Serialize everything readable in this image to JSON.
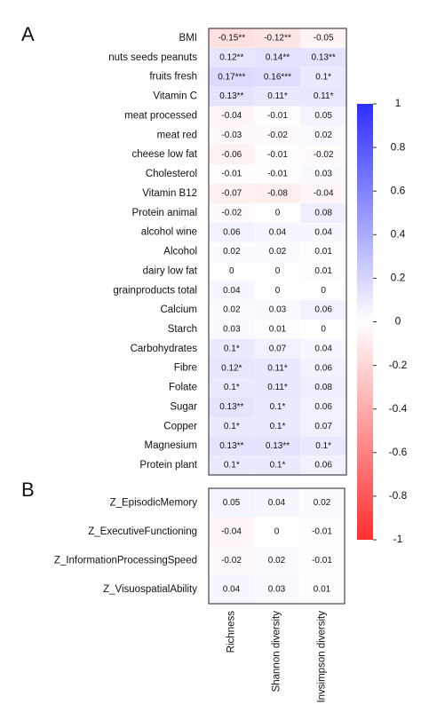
{
  "chart_data": [
    {
      "type": "heatmap",
      "panel_label": "A",
      "rows": [
        "BMI",
        "nuts seeds peanuts",
        "fruits fresh",
        "Vitamin C",
        "meat processed",
        "meat red",
        "cheese low fat",
        "Cholesterol",
        "Vitamin B12",
        "Protein animal",
        "alcohol wine",
        "Alcohol",
        "dairy low fat",
        "grainproducts total",
        "Calcium",
        "Starch",
        "Carbohydrates",
        "Fibre",
        "Folate",
        "Sugar",
        "Copper",
        "Magnesium",
        "Protein plant"
      ],
      "values": [
        [
          -0.15,
          -0.12,
          -0.05
        ],
        [
          0.12,
          0.14,
          0.13
        ],
        [
          0.17,
          0.16,
          0.1
        ],
        [
          0.13,
          0.11,
          0.11
        ],
        [
          -0.04,
          -0.01,
          0.05
        ],
        [
          -0.03,
          -0.02,
          0.02
        ],
        [
          -0.06,
          -0.01,
          -0.02
        ],
        [
          -0.01,
          -0.01,
          0.03
        ],
        [
          -0.07,
          -0.08,
          -0.04
        ],
        [
          -0.02,
          0,
          0.08
        ],
        [
          0.06,
          0.04,
          0.04
        ],
        [
          0.02,
          0.02,
          0.01
        ],
        [
          0,
          0,
          0.01
        ],
        [
          0.04,
          0,
          0
        ],
        [
          0.02,
          0.03,
          0.06
        ],
        [
          0.03,
          0.01,
          0
        ],
        [
          0.1,
          0.07,
          0.04
        ],
        [
          0.12,
          0.11,
          0.06
        ],
        [
          0.1,
          0.11,
          0.08
        ],
        [
          0.13,
          0.1,
          0.06
        ],
        [
          0.1,
          0.1,
          0.07
        ],
        [
          0.13,
          0.13,
          0.1
        ],
        [
          0.1,
          0.1,
          0.06
        ]
      ],
      "value_labels": [
        [
          "-0.15**",
          "-0.12**",
          "-0.05"
        ],
        [
          "0.12**",
          "0.14**",
          "0.13**"
        ],
        [
          "0.17***",
          "0.16***",
          "0.1*"
        ],
        [
          "0.13**",
          "0.11*",
          "0.11*"
        ],
        [
          "-0.04",
          "-0.01",
          "0.05"
        ],
        [
          "-0.03",
          "-0.02",
          "0.02"
        ],
        [
          "-0.06",
          "-0.01",
          "-0.02"
        ],
        [
          "-0.01",
          "-0.01",
          "0.03"
        ],
        [
          "-0.07",
          "-0.08",
          "-0.04"
        ],
        [
          "-0.02",
          "0",
          "0.08"
        ],
        [
          "0.06",
          "0.04",
          "0.04"
        ],
        [
          "0.02",
          "0.02",
          "0.01"
        ],
        [
          "0",
          "0",
          "0.01"
        ],
        [
          "0.04",
          "0",
          "0"
        ],
        [
          "0.02",
          "0.03",
          "0.06"
        ],
        [
          "0.03",
          "0.01",
          "0"
        ],
        [
          "0.1*",
          "0.07",
          "0.04"
        ],
        [
          "0.12*",
          "0.11*",
          "0.06"
        ],
        [
          "0.1*",
          "0.11*",
          "0.08"
        ],
        [
          "0.13**",
          "0.1*",
          "0.06"
        ],
        [
          "0.1*",
          "0.1*",
          "0.07"
        ],
        [
          "0.13**",
          "0.13**",
          "0.1*"
        ],
        [
          "0.1*",
          "0.1*",
          "0.06"
        ]
      ],
      "colorbar": {
        "lim": [
          -1,
          1
        ],
        "ticks": [
          1,
          0.8,
          0.6,
          0.4,
          0.2,
          0,
          -0.2,
          -0.4,
          -0.6,
          -0.8,
          -1
        ],
        "colors": [
          "#ff2e2e",
          "#ffffff",
          "#2e2eff"
        ]
      }
    },
    {
      "type": "heatmap",
      "panel_label": "B",
      "rows": [
        "Z_EpisodicMemory",
        "Z_ExecutiveFunctioning",
        "Z_InformationProcessingSpeed",
        "Z_VisuospatialAbility"
      ],
      "columns": [
        "Richness",
        "Shannon diversity",
        "Invsimpson diversity"
      ],
      "values": [
        [
          0.05,
          0.04,
          0.02
        ],
        [
          -0.04,
          0,
          -0.01
        ],
        [
          -0.02,
          0.02,
          -0.01
        ],
        [
          0.04,
          0.03,
          0.01
        ]
      ]
    }
  ]
}
